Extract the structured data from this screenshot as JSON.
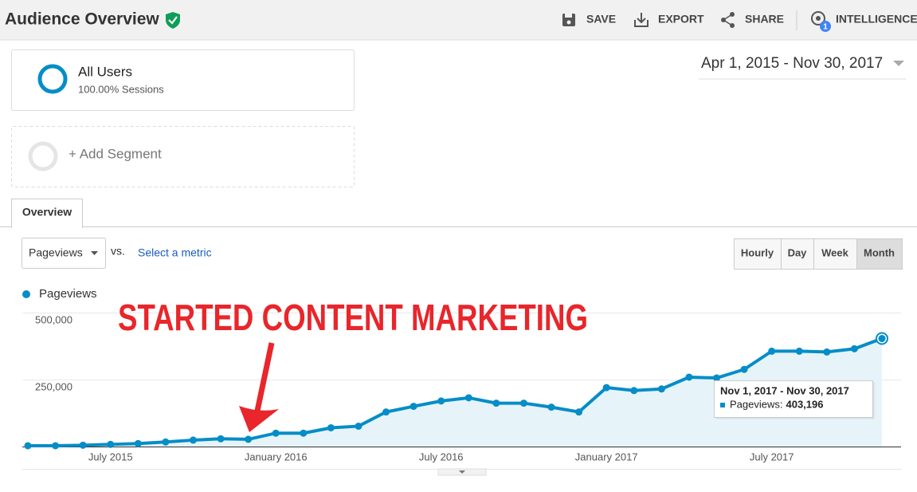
{
  "header": {
    "title": "Audience Overview",
    "actions": [
      "SAVE",
      "EXPORT",
      "SHARE",
      "INTELLIGENCE"
    ],
    "badge": "1"
  },
  "segments": {
    "primary": {
      "name": "All Users",
      "detail": "100.00% Sessions"
    },
    "add": "+ Add Segment"
  },
  "date_range": "Apr 1, 2015 - Nov 30, 2017",
  "tabs": [
    "Overview"
  ],
  "controls": {
    "metric": "Pageviews",
    "vs": "vs.",
    "select": "Select a metric",
    "granularity": [
      "Hourly",
      "Day",
      "Week",
      "Month"
    ]
  },
  "chart_data": {
    "type": "line",
    "annotation": "STARTED CONTENT MARKETING",
    "categories": [
      null,
      null,
      null,
      "July 2015",
      null,
      null,
      null,
      null,
      null,
      "January 2016",
      null,
      null,
      null,
      null,
      null,
      "July 2016",
      null,
      null,
      null,
      null,
      null,
      "January 2017",
      null,
      null,
      null,
      null,
      null,
      "July 2017",
      null,
      null,
      null,
      null
    ],
    "series": [
      {
        "name": "Pageviews",
        "color": "#058dc7",
        "values": [
          3000,
          3000,
          5000,
          8000,
          11000,
          17000,
          24000,
          29000,
          27000,
          50000,
          50000,
          70000,
          76000,
          129000,
          150000,
          170000,
          182000,
          162000,
          162000,
          147000,
          129000,
          220000,
          209000,
          215000,
          259000,
          256000,
          288000,
          356000,
          356000,
          353000,
          365000,
          403196
        ],
        "value_labels": [
          null,
          null,
          null,
          null,
          null,
          null,
          null,
          null,
          null,
          null,
          null,
          null,
          null,
          null,
          null,
          null,
          null,
          null,
          null,
          null,
          null,
          null,
          null,
          null,
          null,
          null,
          null,
          null,
          null,
          null,
          null,
          "403,196"
        ]
      }
    ],
    "ylim": [
      0,
      500000
    ],
    "yticks": [
      {
        "value": 250000,
        "label": "250,000"
      },
      {
        "value": 500000,
        "label": "500,000"
      }
    ],
    "grid": true,
    "tooltip": {
      "title": "Nov 1, 2017 - Nov 30, 2017",
      "label": "Pageviews:"
    }
  }
}
